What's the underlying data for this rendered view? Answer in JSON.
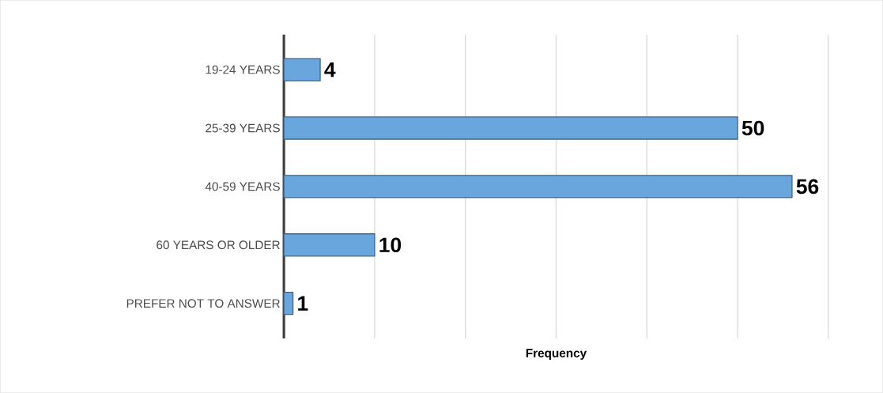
{
  "chart_data": {
    "type": "bar",
    "orientation": "horizontal",
    "xlabel": "Frequency",
    "categories": [
      "19-24 YEARS",
      "25-39 YEARS",
      "40-59 YEARS",
      "60 YEARS OR OLDER",
      "PREFER NOT TO ANSWER"
    ],
    "values": [
      4,
      50,
      56,
      10,
      1
    ],
    "color": "#6aa6de",
    "data_labels": true,
    "xlim": [
      0,
      60
    ],
    "xticks": [
      {
        "value": 10,
        "label": null
      },
      {
        "value": 20,
        "label": null
      },
      {
        "value": 30,
        "label": null
      },
      {
        "value": 40,
        "label": null
      },
      {
        "value": 50,
        "label": null
      },
      {
        "value": 60,
        "label": null
      }
    ],
    "grid": "x",
    "tick_labels": "y"
  }
}
